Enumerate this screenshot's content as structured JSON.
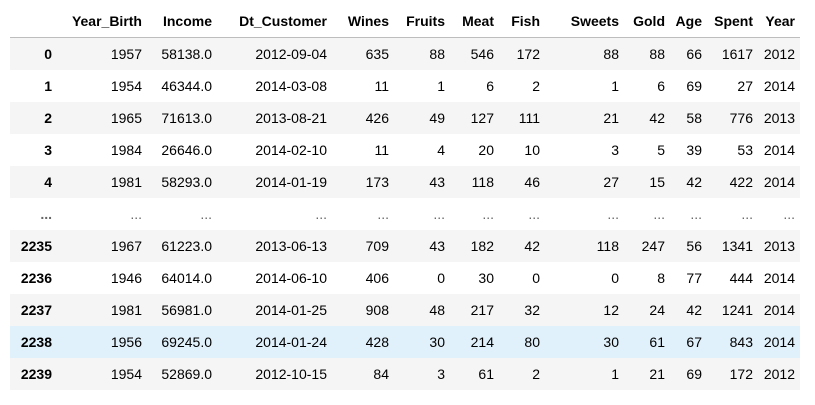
{
  "dataframe": {
    "index_header": "",
    "columns": [
      "Year_Birth",
      "Income",
      "Dt_Customer",
      "Wines",
      "Fruits",
      "Meat",
      "Fish",
      "Sweets",
      "Gold",
      "Age",
      "Spent",
      "Year"
    ],
    "rows": [
      {
        "index": "0",
        "values": [
          "1957",
          "58138.0",
          "2012-09-04",
          "635",
          "88",
          "546",
          "172",
          "88",
          "88",
          "66",
          "1617",
          "2012"
        ]
      },
      {
        "index": "1",
        "values": [
          "1954",
          "46344.0",
          "2014-03-08",
          "11",
          "1",
          "6",
          "2",
          "1",
          "6",
          "69",
          "27",
          "2014"
        ]
      },
      {
        "index": "2",
        "values": [
          "1965",
          "71613.0",
          "2013-08-21",
          "426",
          "49",
          "127",
          "111",
          "21",
          "42",
          "58",
          "776",
          "2013"
        ]
      },
      {
        "index": "3",
        "values": [
          "1984",
          "26646.0",
          "2014-02-10",
          "11",
          "4",
          "20",
          "10",
          "3",
          "5",
          "39",
          "53",
          "2014"
        ]
      },
      {
        "index": "4",
        "values": [
          "1981",
          "58293.0",
          "2014-01-19",
          "173",
          "43",
          "118",
          "46",
          "27",
          "15",
          "42",
          "422",
          "2014"
        ]
      },
      {
        "index": "...",
        "values": [
          "...",
          "...",
          "...",
          "...",
          "...",
          "...",
          "...",
          "...",
          "...",
          "...",
          "...",
          "..."
        ],
        "ellipsis": true
      },
      {
        "index": "2235",
        "values": [
          "1967",
          "61223.0",
          "2013-06-13",
          "709",
          "43",
          "182",
          "42",
          "118",
          "247",
          "56",
          "1341",
          "2013"
        ]
      },
      {
        "index": "2236",
        "values": [
          "1946",
          "64014.0",
          "2014-06-10",
          "406",
          "0",
          "30",
          "0",
          "0",
          "8",
          "77",
          "444",
          "2014"
        ]
      },
      {
        "index": "2237",
        "values": [
          "1981",
          "56981.0",
          "2014-01-25",
          "908",
          "48",
          "217",
          "32",
          "12",
          "24",
          "42",
          "1241",
          "2014"
        ]
      },
      {
        "index": "2238",
        "values": [
          "1956",
          "69245.0",
          "2014-01-24",
          "428",
          "30",
          "214",
          "80",
          "30",
          "61",
          "67",
          "843",
          "2014"
        ],
        "hovered": true
      },
      {
        "index": "2239",
        "values": [
          "1954",
          "52869.0",
          "2012-10-15",
          "84",
          "3",
          "61",
          "2",
          "1",
          "21",
          "69",
          "172",
          "2012"
        ]
      }
    ]
  }
}
